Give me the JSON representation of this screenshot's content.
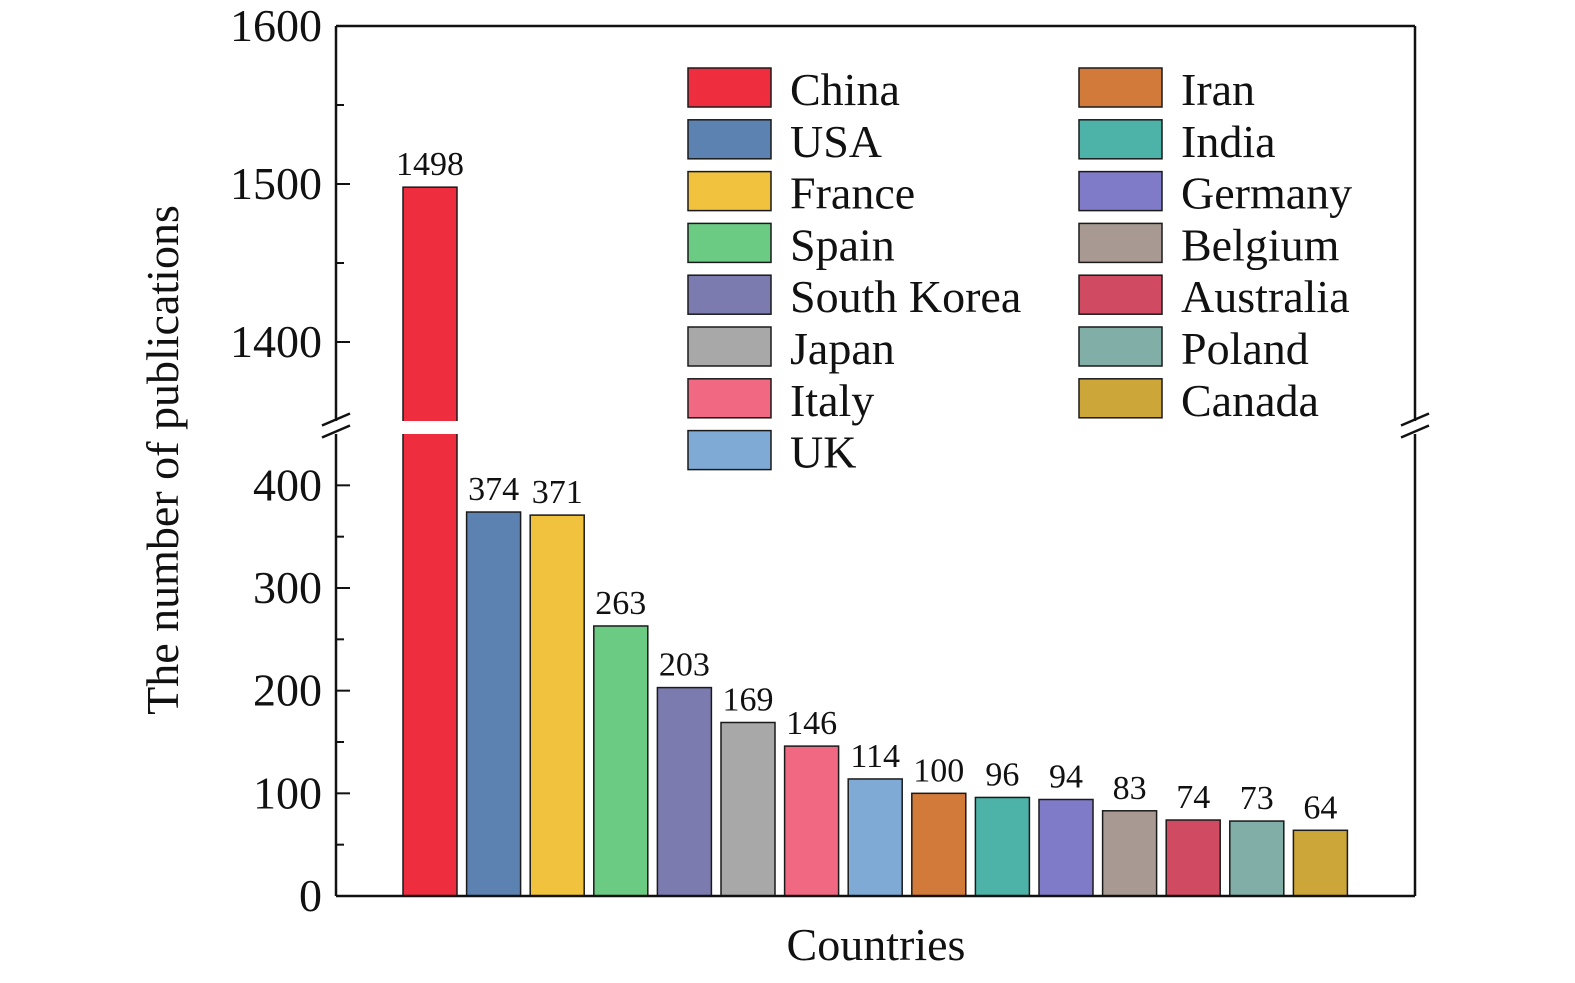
{
  "chart_data": {
    "type": "bar",
    "xlabel": "Countries",
    "ylabel": "The number of publications",
    "axis_break": {
      "lower_range": [
        0,
        450
      ],
      "upper_range": [
        1350,
        1600
      ]
    },
    "lower_ticks": [
      "0",
      "100",
      "200",
      "300",
      "400"
    ],
    "upper_ticks": [
      "1400",
      "1500",
      "1600"
    ],
    "legend_position": "top-right",
    "grid": false,
    "categories": [
      "China",
      "USA",
      "France",
      "Spain",
      "South Korea",
      "Japan",
      "Italy",
      "UK",
      "Iran",
      "India",
      "Germany",
      "Belgium",
      "Australia",
      "Poland",
      "Canada"
    ],
    "values": [
      1498,
      374,
      371,
      263,
      203,
      169,
      146,
      114,
      100,
      96,
      94,
      83,
      74,
      73,
      64
    ],
    "value_labels": [
      "1498",
      "374",
      "371",
      "263",
      "203",
      "169",
      "146",
      "114",
      "100",
      "96",
      "94",
      "83",
      "74",
      "73",
      "64"
    ],
    "colors": [
      "#ee2e3f",
      "#5b82b0",
      "#f0c23e",
      "#6ccb83",
      "#7c7bb0",
      "#a8a8a8",
      "#f06882",
      "#80aad6",
      "#d27a3a",
      "#4db3a8",
      "#7f7bc8",
      "#a89a92",
      "#d04a62",
      "#82aea8",
      "#cca638"
    ]
  }
}
